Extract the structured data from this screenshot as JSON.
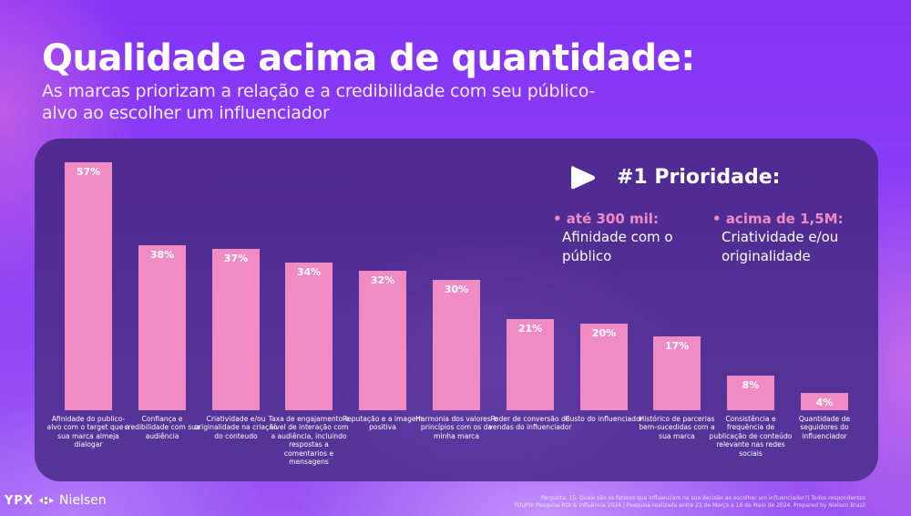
{
  "header": {
    "title": "Qualidade acima de quantidade:",
    "subtitle": "As marcas priorizam a relação e a credibilidade com seu público-alvo ao escolher um influenciador"
  },
  "priority": {
    "icon": "play-triangle-icon",
    "title": "#1 Prioridade:",
    "items": [
      {
        "head": "• até 300 mil:",
        "text": "Afinidade com o público"
      },
      {
        "head": "• acima de 1,5M:",
        "text": "Criatividade e/ou originalidade"
      }
    ]
  },
  "colors": {
    "bar": "#f08bc4",
    "panel": "#512e94",
    "background": "#8433f7",
    "accent": "#f08bc4"
  },
  "chart_data": {
    "type": "bar",
    "title": "Qualidade acima de quantidade:",
    "subtitle": "As marcas priorizam a relação e a credibilidade com seu público-alvo ao escolher um influenciador",
    "xlabel": "",
    "ylabel": "",
    "ylim": [
      0,
      60
    ],
    "grid": false,
    "legend": null,
    "unit": "%",
    "categories": [
      "Afinidade do publico-alvo com o target que a sua marca almeja dialogar",
      "Confiança e credibilidade com sua audiência",
      "Criatividade e/ou originalidade na criação do conteudo",
      "Taxa de engajamento e nível de interação com a audiência, incluindo respostas a comentarios e mensagens",
      "Reputação e a imagem positiva",
      "Harmonia dos valores e princípios com os da minha marca",
      "Poder de conversão de vendas do influenciador",
      "Custo do influenciador",
      "Histórico de parcerias bem-sucedidas com a sua marca",
      "Consistência e frequência de publicação de conteúdo relevante nas redes sociais",
      "Quantidade de seguidores do influenciador"
    ],
    "values": [
      57,
      38,
      37,
      34,
      32,
      30,
      21,
      20,
      17,
      8,
      4
    ],
    "value_labels": [
      "57%",
      "38%",
      "37%",
      "34%",
      "32%",
      "30%",
      "21%",
      "20%",
      "17%",
      "8%",
      "4%"
    ]
  },
  "footer": {
    "logo_ypx": "YPX",
    "logo_separator_icon": "arrows-icon",
    "logo_nielsen": "Nielsen",
    "note_line1": "Pergunta: 15. Quais são os fatores que influenciam na sua decisão ao escolher um influenciador?| Todos respondentes",
    "note_line2": "YOUPIX Pesquisa ROI & Influência 2024 | Pesquisa realizada entre 21 de Março a 18 de Maio de 2024. Prepared by Nielsen Brazil"
  }
}
